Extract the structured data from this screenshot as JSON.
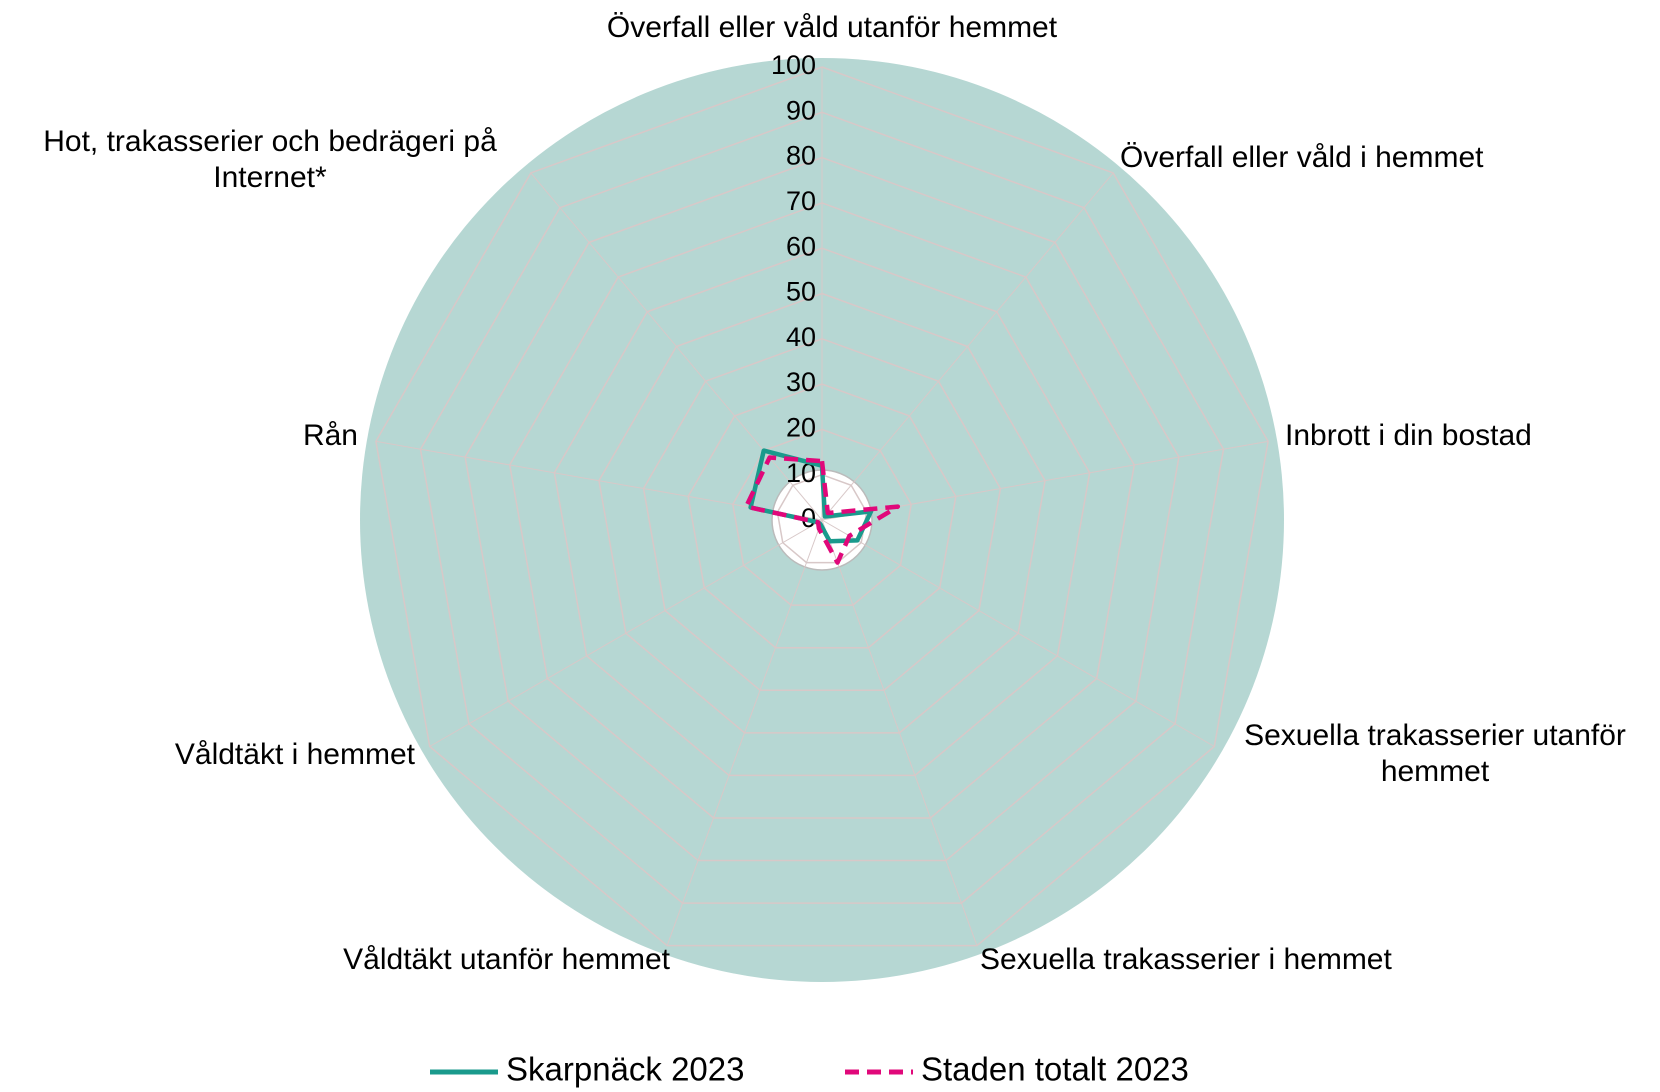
{
  "chart_data": {
    "type": "radar",
    "categories": [
      "Överfall eller våld utanför hemmet",
      "Överfall eller våld i hemmet",
      "Inbrott i din bostad",
      "Sexuella trakasserier utanför hemmet",
      "Sexuella trakasserier i hemmet",
      "Våldtäkt utanför hemmet",
      "Våldtäkt i hemmet",
      "Rån",
      "Hot, trakasserier och bedrägeri på Internet*"
    ],
    "series": [
      {
        "name": "Skarpnäck 2023",
        "color": "#1a9a8c",
        "dash": false,
        "values": [
          12,
          1,
          11,
          9,
          5,
          1,
          1,
          16,
          20
        ]
      },
      {
        "name": "Staden totalt 2023",
        "color": "#e0087a",
        "dash": true,
        "values": [
          13,
          2,
          17,
          7,
          10,
          2,
          1,
          17,
          18
        ]
      }
    ],
    "ylim": [
      0,
      100
    ],
    "yticks": [
      0,
      10,
      20,
      30,
      40,
      50,
      60,
      70,
      80,
      90,
      100
    ],
    "grid": true,
    "background": "#b6d7d3",
    "legend": "bottom"
  }
}
